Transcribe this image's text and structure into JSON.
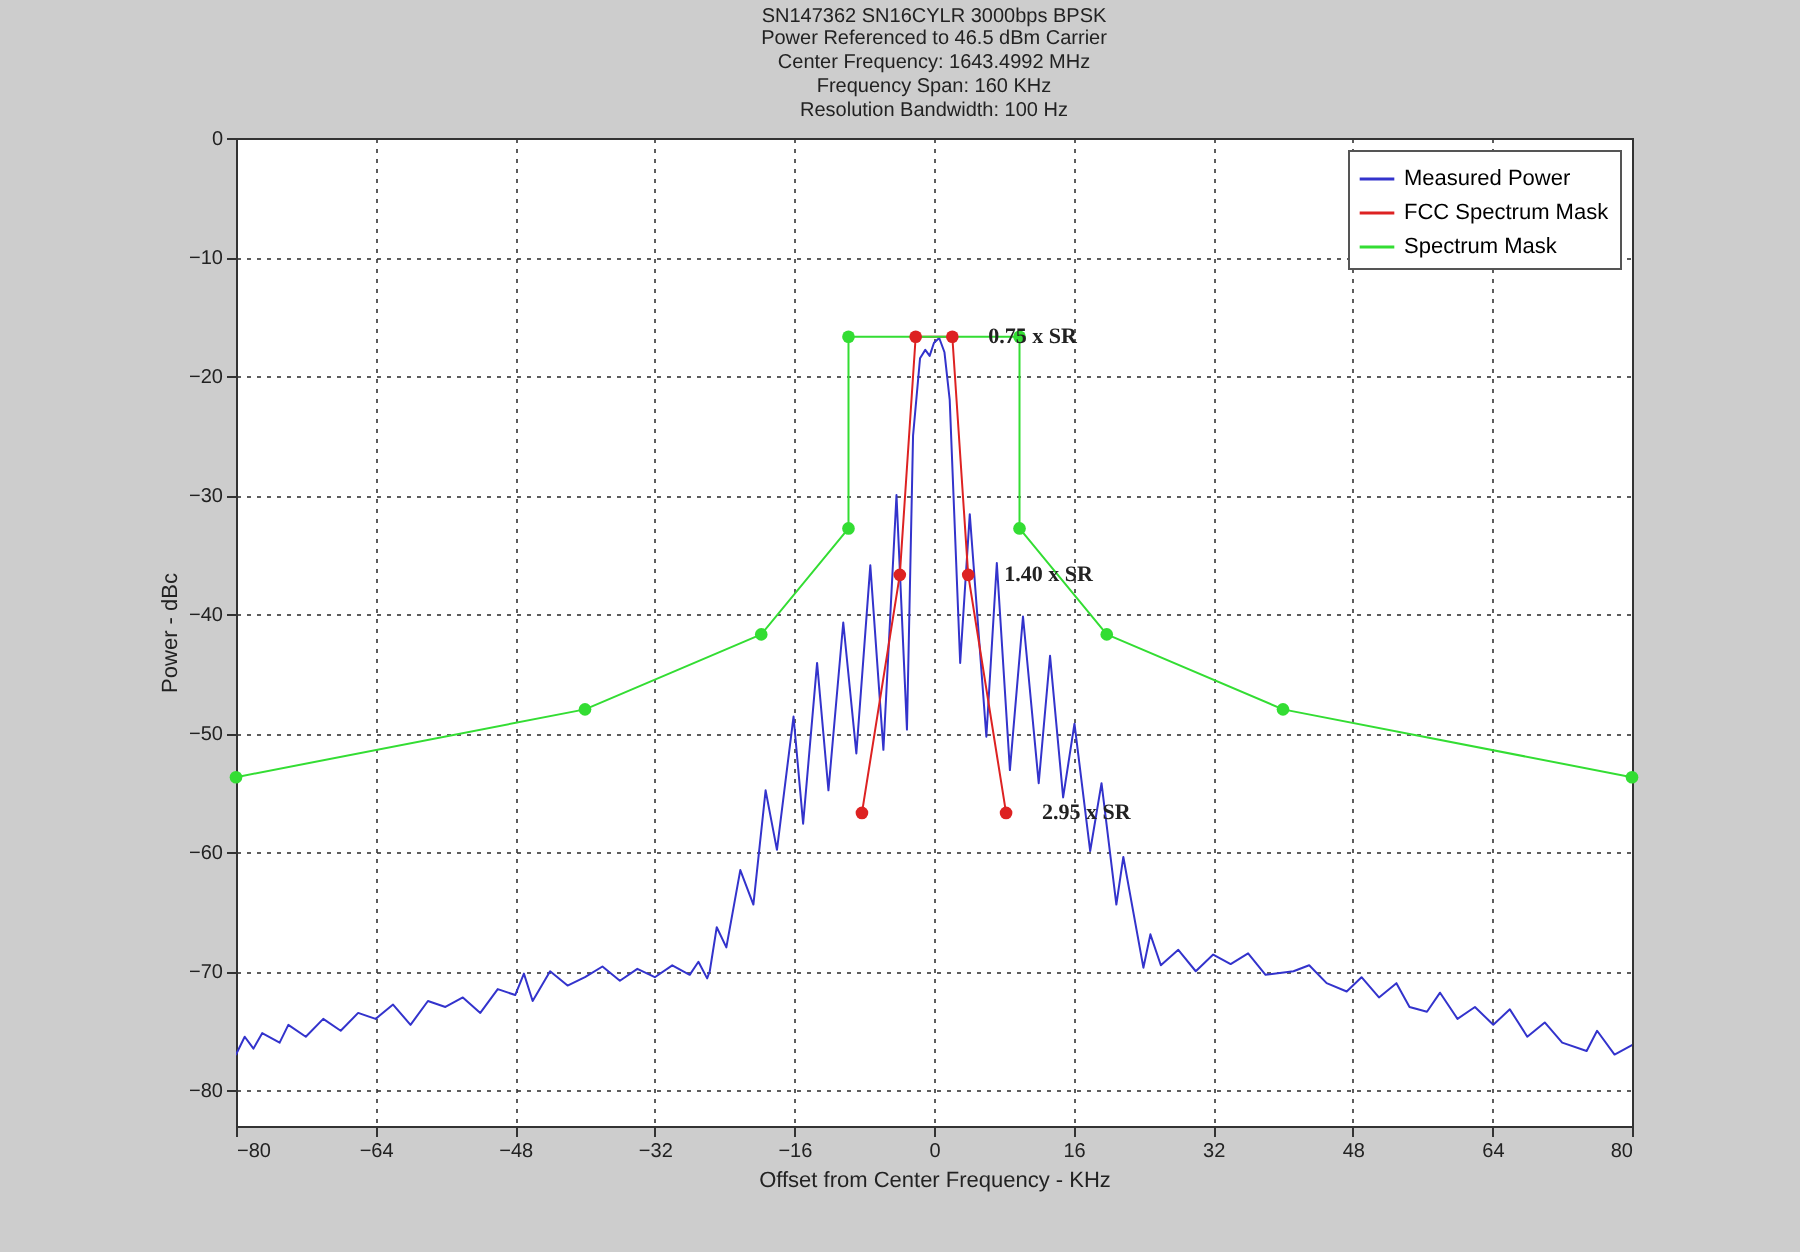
{
  "chart_data": {
    "type": "line",
    "title": "SN147362 SN16CYLR 3000bps BPSK",
    "subtitle": "Power Referenced to 46.5 dBm Carrier\nCenter Frequency: 1643.4992 MHz\nFrequency Span: 160 KHz\nResolution Bandwidth: 100 Hz",
    "xlabel": "Offset from Center Frequency - KHz",
    "ylabel": "Power - dBc",
    "xlim": [
      -80,
      80
    ],
    "xticks": [
      -80,
      -64,
      -48,
      -32,
      -16,
      0,
      16,
      32,
      48,
      64,
      80
    ],
    "ylim": [
      -83,
      0
    ],
    "yticks": [
      -80,
      -70,
      -60,
      -50,
      -40,
      -30,
      -20,
      -10,
      0
    ],
    "grid": true,
    "legend": "top right",
    "line_style": "solid",
    "annotations": [
      {
        "text": "0.75 x SR",
        "x": 2.1,
        "y": -16.7
      },
      {
        "text": "1.40 x SR",
        "x": 3.92,
        "y": -36.7
      },
      {
        "text": "2.95 x SR",
        "x": 8.26,
        "y": -56.7
      }
    ],
    "series": [
      {
        "name": "Measured Power",
        "color": "#3333cc",
        "marker": "none",
        "x": [
          -80,
          -79,
          -78,
          -77,
          -75,
          -74,
          -72,
          -70,
          -68,
          -66,
          -64,
          -62,
          -60,
          -58,
          -56,
          -54,
          -52,
          -50,
          -48,
          -47,
          -46,
          -44,
          -42,
          -40,
          -38,
          -36,
          -34,
          -32,
          -30,
          -28,
          -27,
          -26,
          -25.7,
          -24.9,
          -23.8,
          -22.2,
          -20.7,
          -19.3,
          -18.0,
          -16.1,
          -15.0,
          -13.4,
          -12.1,
          -10.4,
          -8.9,
          -7.3,
          -5.8,
          -4.3,
          -3.1,
          -2.4,
          -1.6,
          -1.0,
          -0.5,
          0,
          0.6,
          1.2,
          1.8,
          3.0,
          4.1,
          6.0,
          7.2,
          8.7,
          10.2,
          12.0,
          13.3,
          14.8,
          16.1,
          17.9,
          19.2,
          20.9,
          21.7,
          24.0,
          24.8,
          26,
          28,
          30,
          32,
          34,
          36,
          38,
          41.2,
          43,
          45,
          47.3,
          49,
          51,
          53,
          54.5,
          56.5,
          58,
          60,
          62,
          64.1,
          66,
          68,
          70,
          72,
          74.8,
          76,
          78,
          80
        ],
        "values": [
          -77,
          -75.5,
          -76.5,
          -75.2,
          -76,
          -74.5,
          -75.5,
          -74,
          -75,
          -73.5,
          -74,
          -72.8,
          -74.5,
          -72.5,
          -73,
          -72.2,
          -73.5,
          -71.5,
          -72,
          -70.2,
          -72.5,
          -70,
          -71.2,
          -70.5,
          -69.6,
          -70.8,
          -69.8,
          -70.5,
          -69.5,
          -70.3,
          -69.2,
          -70.6,
          -70,
          -66.3,
          -68,
          -61.5,
          -64.4,
          -54.8,
          -59.8,
          -48.6,
          -57.6,
          -44.1,
          -54.8,
          -40.7,
          -51.7,
          -35.9,
          -51.4,
          -30,
          -49.7,
          -25,
          -18.5,
          -17.8,
          -18.3,
          -17.2,
          -16.8,
          -18,
          -22,
          -44.1,
          -31.6,
          -50.3,
          -35.7,
          -53.1,
          -40.2,
          -54.2,
          -43.5,
          -55.4,
          -49.2,
          -59.9,
          -54.2,
          -64.4,
          -60.4,
          -69.7,
          -66.9,
          -69.5,
          -68.2,
          -70,
          -68.6,
          -69.4,
          -68.5,
          -70.3,
          -70,
          -69.5,
          -71,
          -71.7,
          -70.5,
          -72.2,
          -71,
          -73,
          -73.4,
          -71.8,
          -74,
          -73,
          -74.5,
          -73.2,
          -75.5,
          -74.3,
          -76,
          -76.7,
          -75,
          -77,
          -76.2
        ]
      },
      {
        "name": "FCC Spectrum Mask",
        "color": "#dd2222",
        "marker": "circle",
        "x": [
          -8.26,
          -3.92,
          -2.1,
          2.1,
          3.92,
          8.26
        ],
        "values": [
          -56.7,
          -36.7,
          -16.7,
          -16.7,
          -36.7,
          -56.7
        ]
      },
      {
        "name": "Spectrum Mask",
        "color": "#33dd33",
        "marker": "circle",
        "x": [
          -80,
          -40,
          -19.8,
          -9.8,
          -9.8,
          9.8,
          9.8,
          19.8,
          40,
          80
        ],
        "values": [
          -53.7,
          -48,
          -41.7,
          -32.8,
          -16.7,
          -16.7,
          -32.8,
          -41.7,
          -48,
          -53.7
        ]
      }
    ]
  }
}
